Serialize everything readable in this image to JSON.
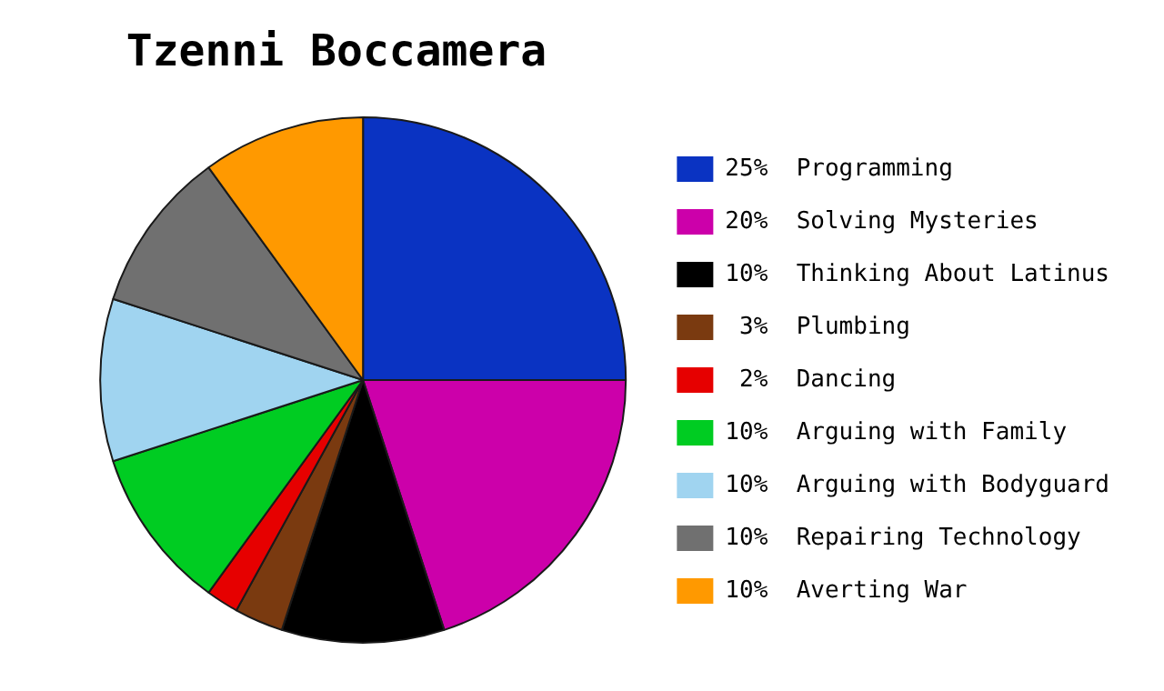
{
  "chart_data": {
    "type": "pie",
    "title": "Tzenni Boccamera",
    "categories": [
      "Programming",
      "Solving Mysteries",
      "Thinking About Latinus",
      "Plumbing",
      "Dancing",
      "Arguing with Family",
      "Arguing with Bodyguard",
      "Repairing Technology",
      "Averting War"
    ],
    "values": [
      25,
      20,
      10,
      3,
      2,
      10,
      10,
      10,
      10
    ],
    "value_labels": [
      "25%",
      "20%",
      "10%",
      "3%",
      "2%",
      "10%",
      "10%",
      "10%",
      "10%"
    ],
    "colors": [
      "#0a33c2",
      "#cc00aa",
      "#000000",
      "#7a3a10",
      "#e60000",
      "#00cc22",
      "#a0d4f0",
      "#707070",
      "#ff9900"
    ],
    "legend": "right"
  }
}
